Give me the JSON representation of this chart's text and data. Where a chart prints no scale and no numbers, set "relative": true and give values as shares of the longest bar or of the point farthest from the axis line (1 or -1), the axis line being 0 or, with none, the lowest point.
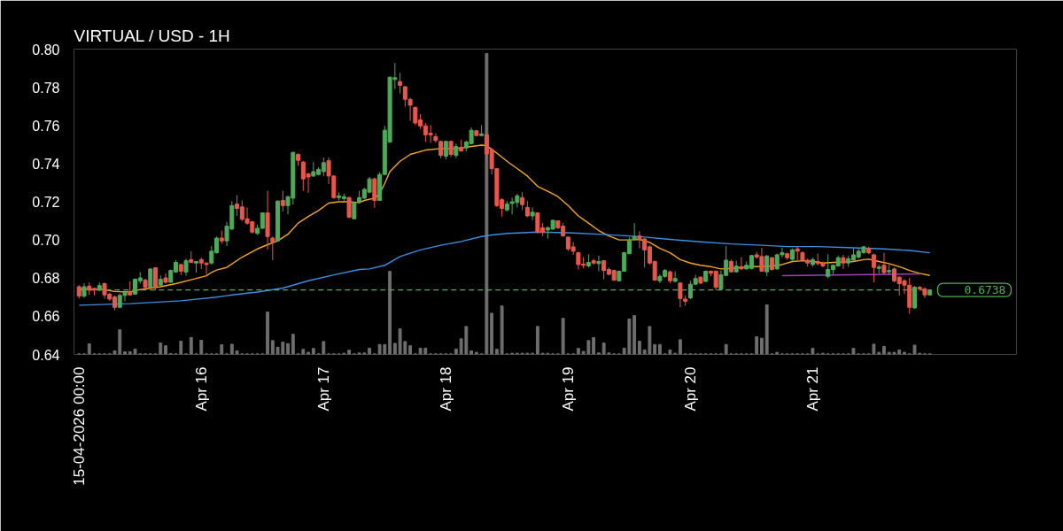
{
  "chart_data": [
    {
      "type": "candlestick",
      "title": "VIRTUAL / USD - 1H",
      "x": [
        "2026-04-15T00:00",
        "2026-04-15T01:00",
        "2026-04-15T02:00",
        "2026-04-15T03:00",
        "2026-04-15T04:00",
        "2026-04-15T05:00",
        "2026-04-15T06:00",
        "2026-04-15T07:00",
        "2026-04-15T08:00",
        "2026-04-15T09:00",
        "2026-04-15T10:00",
        "2026-04-15T11:00",
        "2026-04-15T12:00",
        "2026-04-15T13:00",
        "2026-04-15T14:00",
        "2026-04-15T15:00",
        "2026-04-15T16:00",
        "2026-04-15T17:00",
        "2026-04-15T18:00",
        "2026-04-15T19:00",
        "2026-04-15T20:00",
        "2026-04-15T21:00",
        "2026-04-15T22:00",
        "2026-04-15T23:00",
        "2026-04-16T00:00",
        "2026-04-16T01:00",
        "2026-04-16T02:00",
        "2026-04-16T03:00",
        "2026-04-16T04:00",
        "2026-04-16T05:00",
        "2026-04-16T06:00",
        "2026-04-16T07:00",
        "2026-04-16T08:00",
        "2026-04-16T09:00",
        "2026-04-16T10:00",
        "2026-04-16T11:00",
        "2026-04-16T12:00",
        "2026-04-16T13:00",
        "2026-04-16T14:00",
        "2026-04-16T15:00",
        "2026-04-16T16:00",
        "2026-04-16T17:00",
        "2026-04-16T18:00",
        "2026-04-16T19:00",
        "2026-04-16T20:00",
        "2026-04-16T21:00",
        "2026-04-16T22:00",
        "2026-04-16T23:00",
        "2026-04-17T00:00",
        "2026-04-17T01:00",
        "2026-04-17T02:00",
        "2026-04-17T03:00",
        "2026-04-17T04:00",
        "2026-04-17T05:00",
        "2026-04-17T06:00",
        "2026-04-17T07:00",
        "2026-04-17T08:00",
        "2026-04-17T09:00",
        "2026-04-17T10:00",
        "2026-04-17T11:00",
        "2026-04-17T12:00",
        "2026-04-17T13:00",
        "2026-04-17T14:00",
        "2026-04-17T15:00",
        "2026-04-17T16:00",
        "2026-04-17T17:00",
        "2026-04-17T18:00",
        "2026-04-17T19:00",
        "2026-04-17T20:00",
        "2026-04-17T21:00",
        "2026-04-17T22:00",
        "2026-04-17T23:00",
        "2026-04-18T00:00",
        "2026-04-18T01:00",
        "2026-04-18T02:00",
        "2026-04-18T03:00",
        "2026-04-18T04:00",
        "2026-04-18T05:00",
        "2026-04-18T06:00",
        "2026-04-18T07:00",
        "2026-04-18T08:00",
        "2026-04-18T09:00",
        "2026-04-18T10:00",
        "2026-04-18T11:00",
        "2026-04-18T12:00",
        "2026-04-18T13:00",
        "2026-04-18T14:00",
        "2026-04-18T15:00",
        "2026-04-18T16:00",
        "2026-04-18T17:00",
        "2026-04-18T18:00",
        "2026-04-18T19:00",
        "2026-04-18T20:00",
        "2026-04-18T21:00",
        "2026-04-18T22:00",
        "2026-04-18T23:00",
        "2026-04-19T00:00",
        "2026-04-19T01:00",
        "2026-04-19T02:00",
        "2026-04-19T03:00",
        "2026-04-19T04:00",
        "2026-04-19T05:00",
        "2026-04-19T06:00",
        "2026-04-19T07:00",
        "2026-04-19T08:00",
        "2026-04-19T09:00",
        "2026-04-19T10:00",
        "2026-04-19T11:00",
        "2026-04-19T12:00",
        "2026-04-19T13:00",
        "2026-04-19T14:00",
        "2026-04-19T15:00",
        "2026-04-19T16:00",
        "2026-04-19T17:00",
        "2026-04-19T18:00",
        "2026-04-19T19:00",
        "2026-04-19T20:00",
        "2026-04-19T21:00",
        "2026-04-19T22:00",
        "2026-04-19T23:00",
        "2026-04-20T00:00",
        "2026-04-20T01:00",
        "2026-04-20T02:00",
        "2026-04-20T03:00",
        "2026-04-20T04:00",
        "2026-04-20T05:00",
        "2026-04-20T06:00",
        "2026-04-20T07:00",
        "2026-04-20T08:00",
        "2026-04-20T09:00",
        "2026-04-20T10:00",
        "2026-04-20T11:00",
        "2026-04-20T12:00",
        "2026-04-20T13:00",
        "2026-04-20T14:00",
        "2026-04-20T15:00",
        "2026-04-20T16:00",
        "2026-04-20T17:00",
        "2026-04-20T18:00",
        "2026-04-20T19:00",
        "2026-04-20T20:00",
        "2026-04-20T21:00",
        "2026-04-20T22:00",
        "2026-04-20T23:00",
        "2026-04-21T00:00",
        "2026-04-21T01:00",
        "2026-04-21T02:00",
        "2026-04-21T03:00",
        "2026-04-21T04:00",
        "2026-04-21T05:00",
        "2026-04-21T06:00",
        "2026-04-21T07:00",
        "2026-04-21T08:00",
        "2026-04-21T09:00",
        "2026-04-21T10:00",
        "2026-04-21T11:00",
        "2026-04-21T12:00",
        "2026-04-21T13:00",
        "2026-04-21T14:00",
        "2026-04-21T15:00",
        "2026-04-21T16:00",
        "2026-04-21T17:00",
        "2026-04-21T18:00",
        "2026-04-21T19:00",
        "2026-04-21T20:00",
        "2026-04-21T21:00",
        "2026-04-21T22:00",
        "2026-04-21T23:00"
      ],
      "ohlc": [
        [
          0.6755,
          0.6763,
          0.6693,
          0.6706
        ],
        [
          0.6706,
          0.6774,
          0.6696,
          0.6755
        ],
        [
          0.6758,
          0.6777,
          0.6712,
          0.6737
        ],
        [
          0.6746,
          0.675,
          0.6709,
          0.6737
        ],
        [
          0.6737,
          0.6777,
          0.6732,
          0.6761
        ],
        [
          0.6771,
          0.6777,
          0.6693,
          0.6712
        ],
        [
          0.6716,
          0.6724,
          0.6681,
          0.669
        ],
        [
          0.6701,
          0.6709,
          0.6632,
          0.6647
        ],
        [
          0.6647,
          0.672,
          0.6642,
          0.6709
        ],
        [
          0.6709,
          0.6727,
          0.6678,
          0.6724
        ],
        [
          0.6727,
          0.6783,
          0.6709,
          0.6712
        ],
        [
          0.6716,
          0.6798,
          0.6712,
          0.6794
        ],
        [
          0.6786,
          0.6832,
          0.6771,
          0.6801
        ],
        [
          0.6789,
          0.6797,
          0.6743,
          0.6752
        ],
        [
          0.6752,
          0.6851,
          0.6746,
          0.6848
        ],
        [
          0.6854,
          0.6857,
          0.6737,
          0.6755
        ],
        [
          0.6763,
          0.6814,
          0.6758,
          0.6794
        ],
        [
          0.6801,
          0.6825,
          0.6771,
          0.6778
        ],
        [
          0.6778,
          0.6845,
          0.6775,
          0.684
        ],
        [
          0.6832,
          0.6894,
          0.6828,
          0.6882
        ],
        [
          0.6871,
          0.6876,
          0.6817,
          0.6836
        ],
        [
          0.6832,
          0.6902,
          0.6812,
          0.6891
        ],
        [
          0.6897,
          0.6941,
          0.6879,
          0.6882
        ],
        [
          0.6879,
          0.689,
          0.6829,
          0.6887
        ],
        [
          0.6897,
          0.6907,
          0.6848,
          0.6879
        ],
        [
          0.6879,
          0.6882,
          0.682,
          0.6871
        ],
        [
          0.6879,
          0.6969,
          0.6871,
          0.6941
        ],
        [
          0.6933,
          0.7018,
          0.6928,
          0.701
        ],
        [
          0.701,
          0.7049,
          0.698,
          0.6995
        ],
        [
          0.6995,
          0.7095,
          0.6967,
          0.7072
        ],
        [
          0.7057,
          0.7204,
          0.7052,
          0.718
        ],
        [
          0.7188,
          0.7235,
          0.7126,
          0.7165
        ],
        [
          0.7173,
          0.7207,
          0.7099,
          0.7108
        ],
        [
          0.7111,
          0.717,
          0.708,
          0.7088
        ],
        [
          0.7095,
          0.71,
          0.7034,
          0.7041
        ],
        [
          0.7034,
          0.708,
          0.7026,
          0.7061
        ],
        [
          0.7061,
          0.7145,
          0.7057,
          0.7142
        ],
        [
          0.7142,
          0.7258,
          0.6949,
          0.7018
        ],
        [
          0.701,
          0.7018,
          0.6894,
          0.699
        ],
        [
          0.6995,
          0.7207,
          0.699,
          0.7204
        ],
        [
          0.7207,
          0.7258,
          0.7149,
          0.718
        ],
        [
          0.718,
          0.7231,
          0.7134,
          0.7227
        ],
        [
          0.7219,
          0.7462,
          0.7185,
          0.7459
        ],
        [
          0.7448,
          0.7454,
          0.7389,
          0.7417
        ],
        [
          0.7408,
          0.7415,
          0.7258,
          0.732
        ],
        [
          0.7347,
          0.735,
          0.7247,
          0.733
        ],
        [
          0.7335,
          0.7408,
          0.733,
          0.7358
        ],
        [
          0.7343,
          0.7381,
          0.7338,
          0.737
        ],
        [
          0.7358,
          0.7432,
          0.7335,
          0.7405
        ],
        [
          0.7415,
          0.7432,
          0.7293,
          0.7335
        ],
        [
          0.7335,
          0.734,
          0.7216,
          0.7222
        ],
        [
          0.7222,
          0.725,
          0.7207,
          0.7231
        ],
        [
          0.7216,
          0.7242,
          0.7204,
          0.7227
        ],
        [
          0.7222,
          0.7227,
          0.7114,
          0.7119
        ],
        [
          0.7111,
          0.72,
          0.7108,
          0.7196
        ],
        [
          0.7196,
          0.7258,
          0.7191,
          0.7222
        ],
        [
          0.7219,
          0.7273,
          0.7214,
          0.7265
        ],
        [
          0.725,
          0.733,
          0.7245,
          0.732
        ],
        [
          0.732,
          0.7327,
          0.7168,
          0.7207
        ],
        [
          0.7207,
          0.7355,
          0.7204,
          0.7343
        ],
        [
          0.7343,
          0.7598,
          0.734,
          0.7575
        ],
        [
          0.7513,
          0.7856,
          0.751,
          0.7853
        ],
        [
          0.7841,
          0.7927,
          0.7791,
          0.785
        ],
        [
          0.783,
          0.7876,
          0.7768,
          0.781
        ],
        [
          0.7803,
          0.7807,
          0.7698,
          0.7737
        ],
        [
          0.7737,
          0.7745,
          0.7624,
          0.7706
        ],
        [
          0.7695,
          0.7698,
          0.7602,
          0.7613
        ],
        [
          0.7629,
          0.766,
          0.7582,
          0.7598
        ],
        [
          0.7598,
          0.7613,
          0.7513,
          0.7551
        ],
        [
          0.7559,
          0.7602,
          0.7508,
          0.7551
        ],
        [
          0.7541,
          0.7559,
          0.751,
          0.7521
        ],
        [
          0.7516,
          0.7521,
          0.7428,
          0.7443
        ],
        [
          0.7439,
          0.7521,
          0.7423,
          0.7516
        ],
        [
          0.7516,
          0.7521,
          0.7435,
          0.7448
        ],
        [
          0.7443,
          0.7505,
          0.7428,
          0.749
        ],
        [
          0.7485,
          0.7525,
          0.7463,
          0.7466
        ],
        [
          0.7482,
          0.7521,
          0.7463,
          0.7513
        ],
        [
          0.7505,
          0.759,
          0.7502,
          0.7575
        ],
        [
          0.7572,
          0.7575,
          0.7544,
          0.7547
        ],
        [
          0.7547,
          0.7602,
          0.7544,
          0.7556
        ],
        [
          0.7551,
          0.7559,
          0.7412,
          0.7451
        ],
        [
          0.7474,
          0.7482,
          0.7343,
          0.7374
        ],
        [
          0.7374,
          0.7377,
          0.7173,
          0.718
        ],
        [
          0.7211,
          0.7219,
          0.7122,
          0.7165
        ],
        [
          0.7157,
          0.7204,
          0.715,
          0.7188
        ],
        [
          0.7191,
          0.7222,
          0.7134,
          0.72
        ],
        [
          0.7196,
          0.7242,
          0.717,
          0.7231
        ],
        [
          0.7222,
          0.725,
          0.7157,
          0.7185
        ],
        [
          0.717,
          0.7204,
          0.7119,
          0.7126
        ],
        [
          0.7126,
          0.717,
          0.7103,
          0.7145
        ],
        [
          0.7142,
          0.7145,
          0.7034,
          0.7041
        ],
        [
          0.7064,
          0.7088,
          0.7021,
          0.7041
        ],
        [
          0.7052,
          0.7072,
          0.7007,
          0.7064
        ],
        [
          0.7057,
          0.7106,
          0.7052,
          0.7103
        ],
        [
          0.71,
          0.7103,
          0.7057,
          0.7064
        ],
        [
          0.7072,
          0.7088,
          0.7018,
          0.7021
        ],
        [
          0.7015,
          0.7018,
          0.6941,
          0.6953
        ],
        [
          0.6964,
          0.699,
          0.6922,
          0.6941
        ],
        [
          0.6933,
          0.6938,
          0.6845,
          0.6871
        ],
        [
          0.6874,
          0.691,
          0.6851,
          0.6867
        ],
        [
          0.6864,
          0.6925,
          0.6856,
          0.6882
        ],
        [
          0.6891,
          0.6902,
          0.6871,
          0.6879
        ],
        [
          0.6876,
          0.6918,
          0.6836,
          0.6887
        ],
        [
          0.6891,
          0.6894,
          0.6794,
          0.684
        ],
        [
          0.6845,
          0.6856,
          0.6814,
          0.682
        ],
        [
          0.684,
          0.6845,
          0.6786,
          0.6789
        ],
        [
          0.6786,
          0.684,
          0.6783,
          0.6836
        ],
        [
          0.6836,
          0.6938,
          0.6833,
          0.6933
        ],
        [
          0.6928,
          0.7015,
          0.6925,
          0.6995
        ],
        [
          0.7003,
          0.7088,
          0.6995,
          0.7018
        ],
        [
          0.7021,
          0.7046,
          0.6956,
          0.7003
        ],
        [
          0.7005,
          0.701,
          0.6856,
          0.6948
        ],
        [
          0.6964,
          0.6972,
          0.6871,
          0.6879
        ],
        [
          0.6887,
          0.6891,
          0.6786,
          0.6789
        ],
        [
          0.6786,
          0.682,
          0.6774,
          0.6809
        ],
        [
          0.6809,
          0.6848,
          0.6802,
          0.684
        ],
        [
          0.6833,
          0.684,
          0.6774,
          0.6786
        ],
        [
          0.6783,
          0.6836,
          0.6778,
          0.6798
        ],
        [
          0.6774,
          0.6778,
          0.6647,
          0.6693
        ],
        [
          0.669,
          0.6709,
          0.6655,
          0.6678
        ],
        [
          0.6696,
          0.6786,
          0.669,
          0.6768
        ],
        [
          0.6768,
          0.6817,
          0.6763,
          0.6798
        ],
        [
          0.6805,
          0.6809,
          0.6768,
          0.6774
        ],
        [
          0.6783,
          0.684,
          0.6778,
          0.6836
        ],
        [
          0.6836,
          0.684,
          0.6809,
          0.6825
        ],
        [
          0.6836,
          0.684,
          0.6737,
          0.6752
        ],
        [
          0.6743,
          0.684,
          0.6737,
          0.6817
        ],
        [
          0.6814,
          0.6969,
          0.6809,
          0.6894
        ],
        [
          0.6887,
          0.6897,
          0.6829,
          0.6833
        ],
        [
          0.6833,
          0.6891,
          0.6829,
          0.6863
        ],
        [
          0.686,
          0.691,
          0.6845,
          0.6848
        ],
        [
          0.6848,
          0.6887,
          0.6845,
          0.6867
        ],
        [
          0.6851,
          0.6922,
          0.6845,
          0.6918
        ],
        [
          0.6922,
          0.6938,
          0.6902,
          0.691
        ],
        [
          0.6913,
          0.6959,
          0.6833,
          0.6836
        ],
        [
          0.6833,
          0.6922,
          0.6809,
          0.6916
        ],
        [
          0.6907,
          0.691,
          0.684,
          0.6845
        ],
        [
          0.6848,
          0.6928,
          0.6845,
          0.6922
        ],
        [
          0.6922,
          0.6959,
          0.6907,
          0.6933
        ],
        [
          0.6928,
          0.6933,
          0.6898,
          0.6907
        ],
        [
          0.6898,
          0.6956,
          0.6891,
          0.6948
        ],
        [
          0.6953,
          0.6964,
          0.6894,
          0.6941
        ],
        [
          0.6933,
          0.6941,
          0.6891,
          0.6894
        ],
        [
          0.6894,
          0.6902,
          0.686,
          0.6879
        ],
        [
          0.6871,
          0.6907,
          0.686,
          0.6897
        ],
        [
          0.6887,
          0.6928,
          0.6867,
          0.6876
        ],
        [
          0.6879,
          0.6887,
          0.6856,
          0.6864
        ],
        [
          0.6809,
          0.6925,
          0.6798,
          0.6845
        ],
        [
          0.6845,
          0.6871,
          0.682,
          0.6867
        ],
        [
          0.6864,
          0.6918,
          0.686,
          0.6907
        ],
        [
          0.6907,
          0.6922,
          0.6848,
          0.6879
        ],
        [
          0.6879,
          0.6918,
          0.686,
          0.6902
        ],
        [
          0.6894,
          0.6956,
          0.6887,
          0.6922
        ],
        [
          0.691,
          0.6956,
          0.6902,
          0.6941
        ],
        [
          0.6933,
          0.6969,
          0.6928,
          0.6964
        ],
        [
          0.6956,
          0.6964,
          0.6925,
          0.6933
        ],
        [
          0.6922,
          0.6928,
          0.6778,
          0.6856
        ],
        [
          0.6851,
          0.6871,
          0.6825,
          0.6858
        ],
        [
          0.6867,
          0.6933,
          0.682,
          0.6829
        ],
        [
          0.6833,
          0.6871,
          0.6817,
          0.684
        ],
        [
          0.6848,
          0.6856,
          0.6778,
          0.6786
        ],
        [
          0.6805,
          0.6809,
          0.6709,
          0.6771
        ],
        [
          0.6786,
          0.6794,
          0.6716,
          0.6763
        ],
        [
          0.6763,
          0.6802,
          0.6613,
          0.6647
        ],
        [
          0.6644,
          0.6758,
          0.6639,
          0.6752
        ],
        [
          0.6752,
          0.6758,
          0.6732,
          0.6743
        ],
        [
          0.6743,
          0.6752,
          0.6696,
          0.6712
        ],
        [
          0.6712,
          0.674,
          0.6709,
          0.6738
        ]
      ],
      "colors": [
        "#e9564b",
        "#4fa95a",
        "#e9564b",
        "#e9564b",
        "#4fa95a",
        "#e9564b",
        "#e9564b",
        "#e9564b",
        "#4fa95a",
        "#4fa95a",
        "#e9564b",
        "#4fa95a",
        "#4fa95a",
        "#e9564b",
        "#4fa95a",
        "#e9564b",
        "#4fa95a",
        "#e9564b",
        "#4fa95a",
        "#4fa95a",
        "#e9564b",
        "#4fa95a",
        "#e9564b",
        "#4fa95a",
        "#e9564b",
        "#e9564b",
        "#4fa95a",
        "#4fa95a",
        "#e9564b",
        "#4fa95a",
        "#4fa95a",
        "#e9564b",
        "#e9564b",
        "#e9564b",
        "#e9564b",
        "#4fa95a",
        "#4fa95a",
        "#e9564b",
        "#e9564b",
        "#4fa95a",
        "#e9564b",
        "#4fa95a",
        "#4fa95a",
        "#e9564b",
        "#e9564b",
        "#e9564b",
        "#4fa95a",
        "#4fa95a",
        "#4fa95a",
        "#e9564b",
        "#e9564b",
        "#4fa95a",
        "#4fa95a",
        "#e9564b",
        "#4fa95a",
        "#4fa95a",
        "#4fa95a",
        "#4fa95a",
        "#e9564b",
        "#4fa95a",
        "#4fa95a",
        "#4fa95a",
        "#4fa95a",
        "#e9564b",
        "#e9564b",
        "#e9564b",
        "#e9564b",
        "#e9564b",
        "#e9564b",
        "#e9564b",
        "#e9564b",
        "#e9564b",
        "#4fa95a",
        "#e9564b",
        "#4fa95a",
        "#e9564b",
        "#4fa95a",
        "#4fa95a",
        "#e9564b",
        "#4fa95a",
        "#e9564b",
        "#e9564b",
        "#e9564b",
        "#e9564b",
        "#4fa95a",
        "#4fa95a",
        "#4fa95a",
        "#e9564b",
        "#e9564b",
        "#4fa95a",
        "#e9564b",
        "#e9564b",
        "#4fa95a",
        "#4fa95a",
        "#e9564b",
        "#e9564b",
        "#e9564b",
        "#e9564b",
        "#e9564b",
        "#e9564b",
        "#4fa95a",
        "#e9564b",
        "#4fa95a",
        "#e9564b",
        "#e9564b",
        "#e9564b",
        "#4fa95a",
        "#4fa95a",
        "#4fa95a",
        "#4fa95a",
        "#e9564b",
        "#e9564b",
        "#e9564b",
        "#e9564b",
        "#4fa95a",
        "#4fa95a",
        "#e9564b",
        "#4fa95a",
        "#e9564b",
        "#e9564b",
        "#4fa95a",
        "#4fa95a",
        "#e9564b",
        "#4fa95a",
        "#e9564b",
        "#e9564b",
        "#4fa95a",
        "#4fa95a",
        "#e9564b",
        "#4fa95a",
        "#e9564b",
        "#4fa95a",
        "#4fa95a",
        "#e9564b",
        "#e9564b",
        "#4fa95a",
        "#e9564b",
        "#4fa95a",
        "#4fa95a",
        "#e9564b",
        "#4fa95a",
        "#e9564b",
        "#e9564b",
        "#e9564b",
        "#4fa95a",
        "#e9564b",
        "#e9564b",
        "#4fa95a",
        "#4fa95a",
        "#4fa95a",
        "#e9564b",
        "#4fa95a",
        "#4fa95a",
        "#4fa95a",
        "#4fa95a",
        "#e9564b",
        "#e9564b",
        "#4fa95a",
        "#e9564b",
        "#4fa95a",
        "#e9564b",
        "#e9564b",
        "#e9564b",
        "#e9564b",
        "#4fa95a",
        "#e9564b",
        "#e9564b",
        "#4fa95a"
      ],
      "series": [
        {
          "type": "line",
          "color": "#f5a524",
          "x": [
            "2026-04-15T00:00",
            "2026-04-15T05:00",
            "2026-04-15T07:00",
            "2026-04-15T10:00",
            "2026-04-15T12:00",
            "2026-04-15T16:00",
            "2026-04-15T19:00",
            "2026-04-15T22:00",
            "2026-04-16T01:00",
            "2026-04-16T02:00",
            "2026-04-16T03:00",
            "2026-04-16T05:00",
            "2026-04-16T08:00",
            "2026-04-16T11:00",
            "2026-04-16T13:00",
            "2026-04-16T15:00",
            "2026-04-16T17:00",
            "2026-04-16T19:00",
            "2026-04-16T21:00",
            "2026-04-16T23:00",
            "2026-04-17T01:00",
            "2026-04-17T03:00",
            "2026-04-17T05:00",
            "2026-04-17T07:00",
            "2026-04-17T08:00",
            "2026-04-17T10:00",
            "2026-04-17T11:00",
            "2026-04-17T12:00",
            "2026-04-17T13:00",
            "2026-04-17T15:00",
            "2026-04-17T17:00",
            "2026-04-17T20:00",
            "2026-04-17T23:00",
            "2026-04-18T02:00",
            "2026-04-18T05:00",
            "2026-04-18T07:00",
            "2026-04-18T08:00",
            "2026-04-18T09:00",
            "2026-04-18T10:00",
            "2026-04-18T12:00",
            "2026-04-18T14:00",
            "2026-04-18T16:00",
            "2026-04-18T18:00",
            "2026-04-18T20:00",
            "2026-04-18T22:00",
            "2026-04-19T00:00",
            "2026-04-19T02:00",
            "2026-04-19T04:00",
            "2026-04-19T06:00",
            "2026-04-19T08:00",
            "2026-04-19T10:00",
            "2026-04-19T12:00",
            "2026-04-19T14:00",
            "2026-04-19T16:00",
            "2026-04-19T18:00",
            "2026-04-19T20:00",
            "2026-04-19T22:00",
            "2026-04-20T00:00",
            "2026-04-20T02:00",
            "2026-04-20T04:00",
            "2026-04-20T06:00",
            "2026-04-20T08:00",
            "2026-04-20T10:00",
            "2026-04-20T12:00",
            "2026-04-20T14:00",
            "2026-04-20T16:00",
            "2026-04-20T18:00",
            "2026-04-20T20:00",
            "2026-04-20T22:00",
            "2026-04-21T00:00",
            "2026-04-21T02:00",
            "2026-04-21T04:00",
            "2026-04-21T06:00",
            "2026-04-21T08:00",
            "2026-04-21T10:00",
            "2026-04-21T11:00",
            "2026-04-21T13:00",
            "2026-04-21T15:00",
            "2026-04-21T17:00",
            "2026-04-21T19:00",
            "2026-04-21T21:00",
            "2026-04-21T23:00"
          ],
          "values": [
            0.6743,
            0.674,
            0.673,
            0.6727,
            0.674,
            0.6755,
            0.6771,
            0.6791,
            0.6812,
            0.683,
            0.6842,
            0.6856,
            0.691,
            0.6953,
            0.6975,
            0.6995,
            0.703,
            0.7088,
            0.7123,
            0.7154,
            0.7193,
            0.72,
            0.72,
            0.7196,
            0.7207,
            0.7219,
            0.7242,
            0.7296,
            0.7358,
            0.7412,
            0.7448,
            0.7471,
            0.7479,
            0.7479,
            0.749,
            0.7497,
            0.7494,
            0.7474,
            0.7455,
            0.7412,
            0.7374,
            0.7335,
            0.7281,
            0.7255,
            0.7227,
            0.718,
            0.7126,
            0.7088,
            0.7049,
            0.7021,
            0.7,
            0.7,
            0.7003,
            0.6987,
            0.6956,
            0.6933,
            0.6897,
            0.6879,
            0.6867,
            0.686,
            0.6848,
            0.6851,
            0.6856,
            0.686,
            0.686,
            0.6864,
            0.6871,
            0.6887,
            0.6891,
            0.6887,
            0.6879,
            0.6882,
            0.6884,
            0.6887,
            0.6897,
            0.6899,
            0.6887,
            0.6876,
            0.686,
            0.684,
            0.6825,
            0.6814
          ]
        },
        {
          "type": "line",
          "color": "#3b8ee0",
          "x": [
            "2026-04-15T00:00",
            "2026-04-15T10:00",
            "2026-04-15T20:00",
            "2026-04-16T03:00",
            "2026-04-16T06:00",
            "2026-04-16T11:00",
            "2026-04-16T16:00",
            "2026-04-16T21:00",
            "2026-04-17T02:00",
            "2026-04-17T07:00",
            "2026-04-17T09:00",
            "2026-04-17T12:00",
            "2026-04-17T15:00",
            "2026-04-17T19:00",
            "2026-04-17T23:00",
            "2026-04-18T03:00",
            "2026-04-18T07:00",
            "2026-04-18T09:00",
            "2026-04-18T12:00",
            "2026-04-18T18:00",
            "2026-04-19T00:00",
            "2026-04-19T06:00",
            "2026-04-19T12:00",
            "2026-04-19T15:00",
            "2026-04-19T20:00",
            "2026-04-20T02:00",
            "2026-04-20T08:00",
            "2026-04-20T14:00",
            "2026-04-20T19:00",
            "2026-04-21T01:00",
            "2026-04-21T08:00",
            "2026-04-21T14:00",
            "2026-04-21T19:00",
            "2026-04-21T23:00"
          ],
          "values": [
            0.6658,
            0.6666,
            0.6681,
            0.67,
            0.6712,
            0.6727,
            0.6748,
            0.6786,
            0.6817,
            0.6845,
            0.6848,
            0.6867,
            0.6913,
            0.6948,
            0.6972,
            0.6992,
            0.7018,
            0.7026,
            0.7034,
            0.7041,
            0.7038,
            0.703,
            0.7021,
            0.7015,
            0.7003,
            0.699,
            0.6979,
            0.6972,
            0.6965,
            0.6965,
            0.6959,
            0.6953,
            0.6945,
            0.6933
          ]
        },
        {
          "type": "line",
          "color": "#a23dc4",
          "x": [
            "2026-04-20T18:00",
            "2026-04-21T21:00"
          ],
          "values": [
            0.6813,
            0.6822
          ]
        }
      ],
      "ref_lines": [
        {
          "axis": "y",
          "value": 0.6738,
          "label": "0.6738",
          "color": "#4caf50",
          "line_style": "dashed"
        }
      ],
      "xlim": [
        "2026-04-14T23:00",
        "2026-04-22T16:00"
      ],
      "xticks": [
        {
          "value": "2026-04-15T00:00",
          "label": "15-04-2026 00:00"
        },
        {
          "value": "2026-04-16",
          "label": "Apr 16"
        },
        {
          "value": "2026-04-17",
          "label": "Apr 17"
        },
        {
          "value": "2026-04-18",
          "label": "Apr 18"
        },
        {
          "value": "2026-04-19",
          "label": "Apr 19"
        },
        {
          "value": "2026-04-20",
          "label": "Apr 20"
        },
        {
          "value": "2026-04-21",
          "label": "Apr 21"
        }
      ],
      "ylim": [
        0.64,
        0.8
      ],
      "yticks": [
        0.64,
        0.66,
        0.68,
        {
          "value": 0.7,
          "label": "0.70"
        },
        0.72,
        0.74,
        0.76,
        0.78,
        {
          "value": 0.8,
          "label": "0.80"
        }
      ]
    },
    {
      "type": "bar",
      "relative": true,
      "color": "#6e6e6e",
      "tick_labels": false,
      "x": [
        "2026-04-15T00:00",
        "2026-04-15T01:00",
        "2026-04-15T02:00",
        "2026-04-15T03:00",
        "2026-04-15T04:00",
        "2026-04-15T05:00",
        "2026-04-15T06:00",
        "2026-04-15T07:00",
        "2026-04-15T08:00",
        "2026-04-15T09:00",
        "2026-04-15T10:00",
        "2026-04-15T11:00",
        "2026-04-15T12:00",
        "2026-04-15T13:00",
        "2026-04-15T14:00",
        "2026-04-15T15:00",
        "2026-04-15T16:00",
        "2026-04-15T17:00",
        "2026-04-15T18:00",
        "2026-04-15T19:00",
        "2026-04-15T20:00",
        "2026-04-15T21:00",
        "2026-04-15T22:00",
        "2026-04-15T23:00",
        "2026-04-16T00:00",
        "2026-04-16T01:00",
        "2026-04-16T02:00",
        "2026-04-16T03:00",
        "2026-04-16T04:00",
        "2026-04-16T05:00",
        "2026-04-16T06:00",
        "2026-04-16T07:00",
        "2026-04-16T08:00",
        "2026-04-16T09:00",
        "2026-04-16T10:00",
        "2026-04-16T11:00",
        "2026-04-16T12:00",
        "2026-04-16T13:00",
        "2026-04-16T14:00",
        "2026-04-16T15:00",
        "2026-04-16T16:00",
        "2026-04-16T17:00",
        "2026-04-16T18:00",
        "2026-04-16T19:00",
        "2026-04-16T20:00",
        "2026-04-16T21:00",
        "2026-04-16T22:00",
        "2026-04-16T23:00",
        "2026-04-17T00:00",
        "2026-04-17T01:00",
        "2026-04-17T02:00",
        "2026-04-17T03:00",
        "2026-04-17T04:00",
        "2026-04-17T05:00",
        "2026-04-17T06:00",
        "2026-04-17T07:00",
        "2026-04-17T08:00",
        "2026-04-17T09:00",
        "2026-04-17T10:00",
        "2026-04-17T11:00",
        "2026-04-17T12:00",
        "2026-04-17T13:00",
        "2026-04-17T14:00",
        "2026-04-17T15:00",
        "2026-04-17T16:00",
        "2026-04-17T17:00",
        "2026-04-17T18:00",
        "2026-04-17T19:00",
        "2026-04-17T20:00",
        "2026-04-17T21:00",
        "2026-04-17T22:00",
        "2026-04-17T23:00",
        "2026-04-18T00:00",
        "2026-04-18T01:00",
        "2026-04-18T02:00",
        "2026-04-18T03:00",
        "2026-04-18T04:00",
        "2026-04-18T05:00",
        "2026-04-18T06:00",
        "2026-04-18T07:00",
        "2026-04-18T08:00",
        "2026-04-18T09:00",
        "2026-04-18T10:00",
        "2026-04-18T11:00",
        "2026-04-18T12:00",
        "2026-04-18T13:00",
        "2026-04-18T14:00",
        "2026-04-18T15:00",
        "2026-04-18T16:00",
        "2026-04-18T17:00",
        "2026-04-18T18:00",
        "2026-04-18T19:00",
        "2026-04-18T20:00",
        "2026-04-18T21:00",
        "2026-04-18T22:00",
        "2026-04-18T23:00",
        "2026-04-19T00:00",
        "2026-04-19T01:00",
        "2026-04-19T02:00",
        "2026-04-19T03:00",
        "2026-04-19T04:00",
        "2026-04-19T05:00",
        "2026-04-19T06:00",
        "2026-04-19T07:00",
        "2026-04-19T08:00",
        "2026-04-19T09:00",
        "2026-04-19T10:00",
        "2026-04-19T11:00",
        "2026-04-19T12:00",
        "2026-04-19T13:00",
        "2026-04-19T14:00",
        "2026-04-19T15:00",
        "2026-04-19T16:00",
        "2026-04-19T17:00",
        "2026-04-19T18:00",
        "2026-04-19T19:00",
        "2026-04-19T20:00",
        "2026-04-19T21:00",
        "2026-04-19T22:00",
        "2026-04-19T23:00",
        "2026-04-20T00:00",
        "2026-04-20T01:00",
        "2026-04-20T02:00",
        "2026-04-20T03:00",
        "2026-04-20T04:00",
        "2026-04-20T05:00",
        "2026-04-20T06:00",
        "2026-04-20T07:00",
        "2026-04-20T08:00",
        "2026-04-20T09:00",
        "2026-04-20T10:00",
        "2026-04-20T11:00",
        "2026-04-20T12:00",
        "2026-04-20T13:00",
        "2026-04-20T14:00",
        "2026-04-20T15:00",
        "2026-04-20T16:00",
        "2026-04-20T17:00",
        "2026-04-20T18:00",
        "2026-04-20T19:00",
        "2026-04-20T20:00",
        "2026-04-20T21:00",
        "2026-04-20T22:00",
        "2026-04-20T23:00",
        "2026-04-21T00:00",
        "2026-04-21T01:00",
        "2026-04-21T02:00",
        "2026-04-21T03:00",
        "2026-04-21T04:00",
        "2026-04-21T05:00",
        "2026-04-21T06:00",
        "2026-04-21T07:00",
        "2026-04-21T08:00",
        "2026-04-21T09:00",
        "2026-04-21T10:00",
        "2026-04-21T11:00",
        "2026-04-21T12:00",
        "2026-04-21T13:00",
        "2026-04-21T14:00",
        "2026-04-21T15:00",
        "2026-04-21T16:00",
        "2026-04-21T17:00",
        "2026-04-21T18:00",
        "2026-04-21T19:00",
        "2026-04-21T20:00",
        "2026-04-21T21:00",
        "2026-04-21T22:00",
        "2026-04-21T23:00"
      ],
      "values": [
        0.002,
        0.002,
        0.035,
        0.002,
        0.002,
        0.002,
        0.002,
        0.012,
        0.082,
        0.009,
        0.009,
        0.018,
        0.002,
        0.002,
        0.002,
        0.002,
        0.038,
        0.029,
        0.003,
        0.002,
        0.044,
        0.002,
        0.056,
        0.002,
        0.047,
        0.002,
        0.002,
        0.002,
        0.032,
        0.002,
        0.034,
        0.012,
        0.002,
        0.002,
        0.002,
        0.002,
        0.002,
        0.141,
        0.046,
        0.024,
        0.041,
        0.036,
        0.067,
        0.002,
        0.017,
        0.007,
        0.02,
        0.002,
        0.043,
        0.002,
        0.002,
        0.002,
        0.004,
        0.014,
        0.002,
        0.005,
        0.005,
        0.021,
        0.002,
        0.033,
        0.033,
        0.276,
        0.037,
        0.085,
        0.043,
        0.029,
        0.002,
        0.021,
        0.021,
        0.002,
        0.002,
        0.002,
        0.002,
        0.002,
        0.018,
        0.052,
        0.093,
        0.012,
        0.007,
        0.002,
        1,
        0.137,
        0.017,
        0.161,
        0.002,
        0.004,
        0.004,
        0.004,
        0.004,
        0.004,
        0.093,
        0.004,
        0.004,
        0.002,
        0.002,
        0.12,
        0.002,
        0.002,
        0.02,
        0.01,
        0.046,
        0.056,
        0.005,
        0.038,
        0.005,
        0.002,
        0.002,
        0.021,
        0.118,
        0.129,
        0.044,
        0.015,
        0.093,
        0.033,
        0.033,
        0.002,
        0.015,
        0.004,
        0.049,
        0.002,
        0.002,
        0.002,
        0.002,
        0.002,
        0.002,
        0.002,
        0.002,
        0.033,
        0.002,
        0.002,
        0.002,
        0.002,
        0.002,
        0.059,
        0.054,
        0.165,
        0.002,
        0.007,
        0.002,
        0.002,
        0.002,
        0.002,
        0.002,
        0.002,
        0.02,
        0.002,
        0.004,
        0.002,
        0.002,
        0.002,
        0.002,
        0.002,
        0.02,
        0.002,
        0.002,
        0.002,
        0.034,
        0.007,
        0.027,
        0.007,
        0.007,
        0.015,
        0.007,
        0.002,
        0.031,
        0.004,
        0.002,
        0.002
      ],
      "xlim": [
        "2026-04-14T23:00",
        "2026-04-22T16:00"
      ]
    }
  ]
}
